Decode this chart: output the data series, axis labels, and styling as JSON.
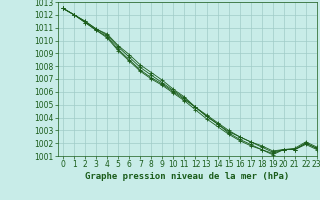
{
  "title": "Graphe pression niveau de la mer (hPa)",
  "bg_color": "#c8ece8",
  "grid_color": "#a0ccc8",
  "line_color": "#1a5c1a",
  "xlim": [
    -0.5,
    23
  ],
  "ylim": [
    1001,
    1013
  ],
  "xticks": [
    0,
    1,
    2,
    3,
    4,
    5,
    6,
    7,
    8,
    9,
    10,
    11,
    12,
    13,
    14,
    15,
    16,
    17,
    18,
    19,
    20,
    21,
    22,
    23
  ],
  "yticks": [
    1001,
    1002,
    1003,
    1004,
    1005,
    1006,
    1007,
    1008,
    1009,
    1010,
    1011,
    1012,
    1013
  ],
  "tick_fontsize": 5.5,
  "xlabel_fontsize": 6.5,
  "series": [
    [
      1012.5,
      1012.0,
      1011.4,
      1010.8,
      1010.3,
      1009.3,
      1008.5,
      1007.7,
      1007.1,
      1006.6,
      1006.0,
      1005.4,
      1004.8,
      1004.2,
      1003.6,
      1003.0,
      1002.5,
      1002.1,
      1001.8,
      1001.4,
      1001.5,
      1001.5,
      1002.0,
      1001.6
    ],
    [
      1012.5,
      1012.0,
      1011.4,
      1010.8,
      1010.2,
      1009.2,
      1008.4,
      1007.6,
      1007.0,
      1006.5,
      1005.9,
      1005.3,
      1004.6,
      1003.9,
      1003.3,
      1002.7,
      1002.2,
      1001.8,
      1001.5,
      1001.2,
      1001.5,
      1001.6,
      1002.1,
      1001.7
    ],
    [
      1012.5,
      1012.0,
      1011.5,
      1010.9,
      1010.5,
      1009.6,
      1008.9,
      1008.1,
      1007.5,
      1006.9,
      1006.2,
      1005.6,
      1004.8,
      1004.1,
      1003.5,
      1002.8,
      1002.3,
      1001.9,
      1001.5,
      1001.1,
      1001.5,
      1001.5,
      1001.9,
      1001.5
    ],
    [
      1012.5,
      1012.0,
      1011.5,
      1010.9,
      1010.4,
      1009.5,
      1008.7,
      1007.9,
      1007.3,
      1006.7,
      1006.1,
      1005.5,
      1004.8,
      1004.1,
      1003.5,
      1002.9,
      1002.5,
      1002.1,
      1001.7,
      1001.3,
      1001.5,
      1001.5,
      1002.0,
      1001.6
    ]
  ]
}
